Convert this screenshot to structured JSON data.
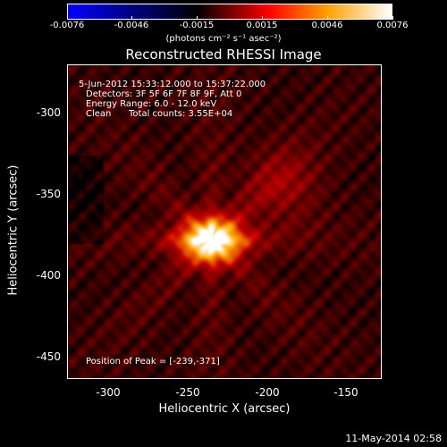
{
  "colorbar": {
    "ticks": [
      "-0.0076",
      "-0.0046",
      "-0.0015",
      "0.0015",
      "0.0046",
      "0.0076"
    ],
    "units": "(photons cm⁻² s⁻¹ asec⁻²)",
    "colormap": [
      "#0000ff",
      "#000000",
      "#ff0000",
      "#ffa000",
      "#ffffff"
    ]
  },
  "title": "Reconstructed RHESSI Image",
  "axes": {
    "xlabel": "Heliocentric X (arcsec)",
    "ylabel": "Heliocentric Y (arcsec)",
    "xticks": [
      "-300",
      "-250",
      "-200",
      "-150"
    ],
    "yticks": [
      "-300",
      "-350",
      "-400",
      "-450"
    ],
    "xlim": [
      -330,
      -130
    ],
    "ylim": [
      -460,
      -260
    ]
  },
  "info": {
    "time": "5-Jun-2012 15:33:12.000 to 15:37:22.000",
    "detectors": "Detectors: 3F 5F 6F 7F 8F 9F, Att 0",
    "energy": "Energy Range: 6.0 - 12.0 keV",
    "method": "Clean",
    "counts": "Total counts: 3.55E+04"
  },
  "peak_label": "Position of Peak = [-239,-371]",
  "peak": {
    "x": -239,
    "y": -371
  },
  "footer": "11-May-2014 02:58"
}
